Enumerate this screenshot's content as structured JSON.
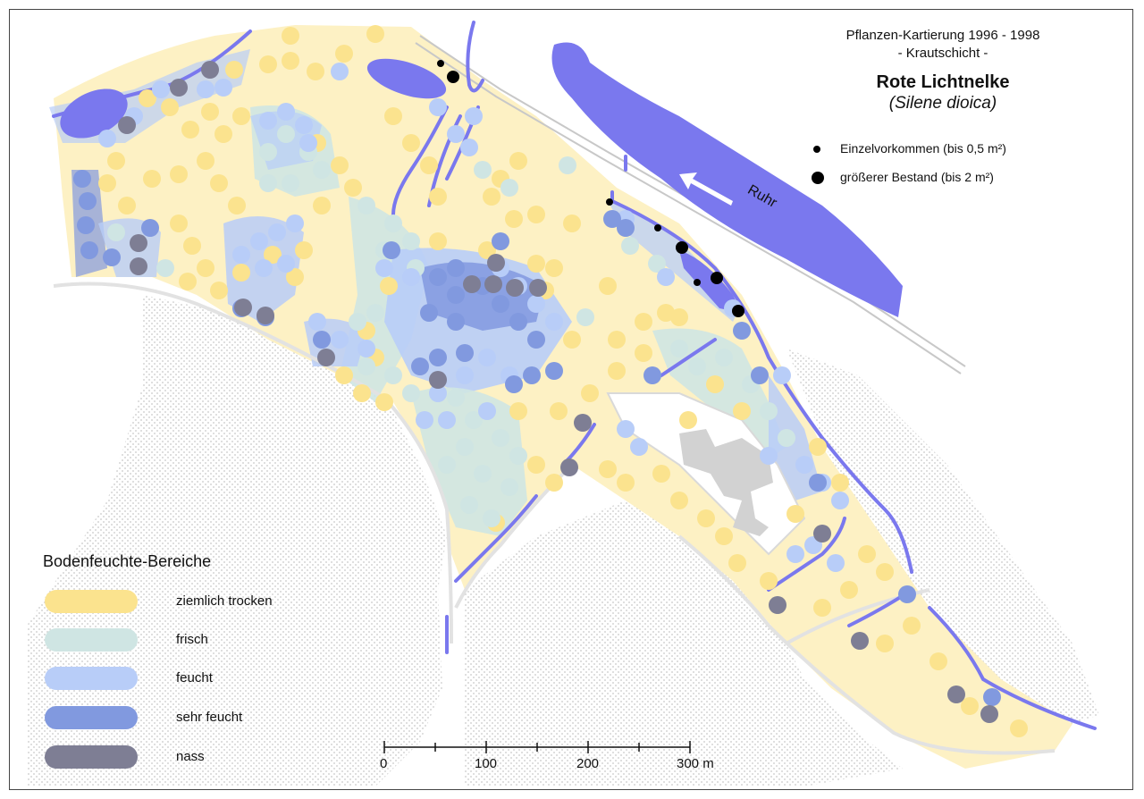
{
  "title": {
    "line1": "Pflanzen-Kartierung 1996 - 1998",
    "line2": "- Krautschicht -",
    "species": "Rote Lichtnelke",
    "latin": "(Silene dioica)"
  },
  "occurrence_legend": [
    {
      "label": "Einzelvorkommen (bis 0,5 m²)",
      "size": "small"
    },
    {
      "label": "größerer Bestand (bis 2 m²)",
      "size": "large"
    }
  ],
  "moisture_legend": {
    "title": "Bodenfeuchte-Bereiche",
    "items": [
      {
        "label": "ziemlich trocken",
        "color": "#fbe38e"
      },
      {
        "label": "frisch",
        "color": "#cfe5e3"
      },
      {
        "label": "feucht",
        "color": "#b8cdf8"
      },
      {
        "label": "sehr feucht",
        "color": "#8199df"
      },
      {
        "label": "nass",
        "color": "#7e7e94"
      }
    ]
  },
  "river": {
    "name": "Ruhr",
    "color": "#7a78ee"
  },
  "scale_bar": {
    "ticks": [
      "0",
      "100",
      "200",
      "300 m"
    ]
  },
  "colors": {
    "dry_zone": "#fdf1c4",
    "dry_dot": "#fbe38e",
    "fresh": "#cfe5e3",
    "moist": "#b8cdf8",
    "very_moist": "#8199df",
    "wet": "#7e7e94",
    "water": "#7a78ee",
    "building": "#d2d2d2",
    "hatch": "#d8d8d8"
  }
}
